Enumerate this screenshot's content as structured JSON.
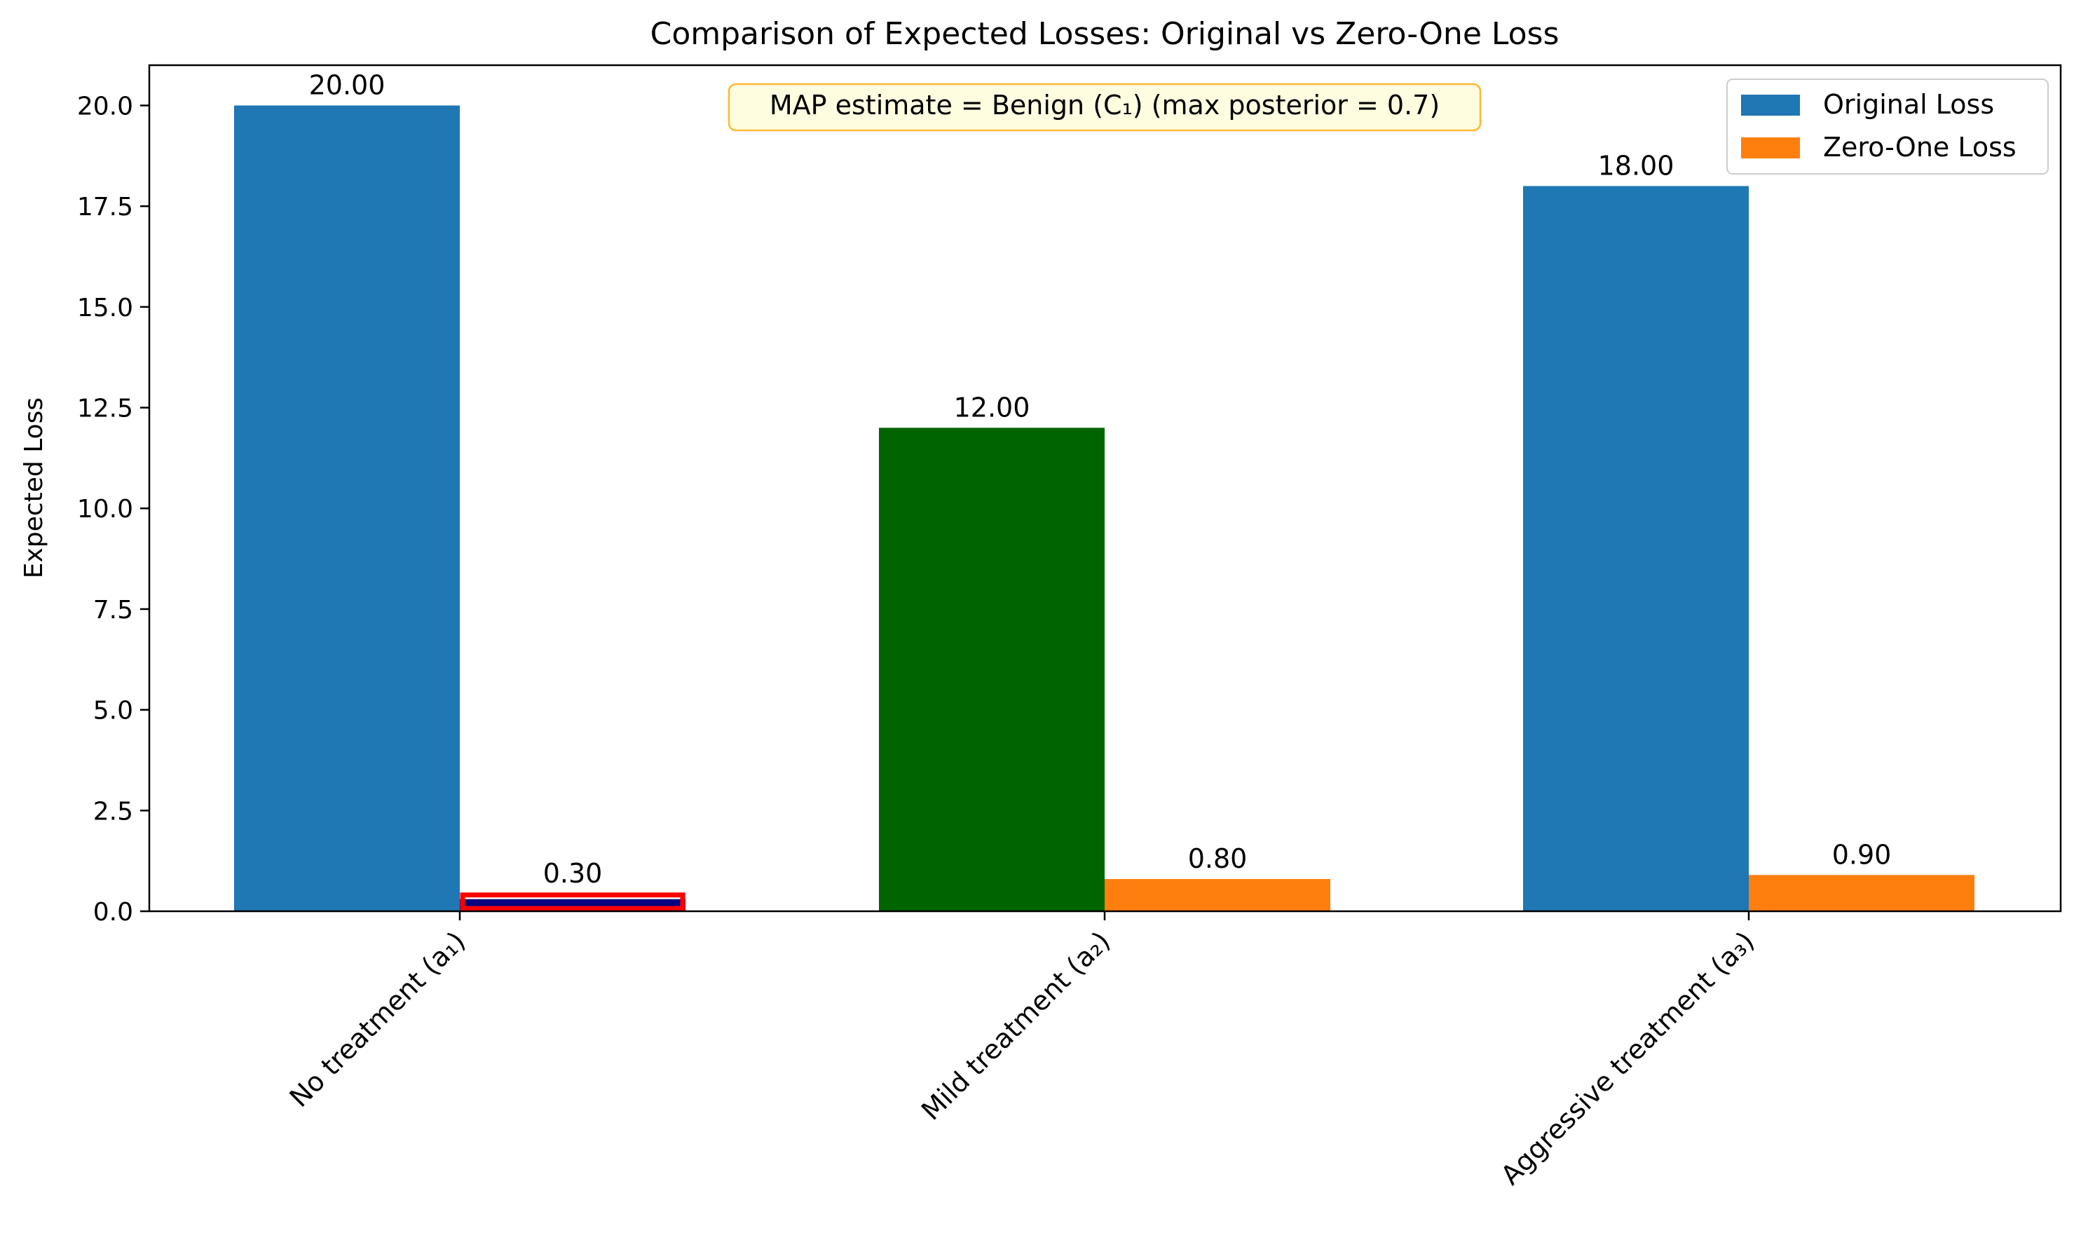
{
  "chart_data": {
    "type": "bar",
    "title": "Comparison of Expected Losses: Original vs Zero-One Loss",
    "xlabel": "",
    "ylabel": "Expected Loss",
    "categories": [
      "No treatment (a₁)",
      "Mild treatment (a₂)",
      "Aggressive treatment (a₃)"
    ],
    "series": [
      {
        "name": "Original Loss",
        "color": "#1f77b4",
        "values": [
          20.0,
          12.0,
          18.0
        ],
        "value_labels": [
          "20.00",
          "12.00",
          "18.00"
        ],
        "bar_colors": [
          "#1f77b4",
          "#006400",
          "#1f77b4"
        ]
      },
      {
        "name": "Zero-One Loss",
        "color": "#ff7f0e",
        "values": [
          0.3,
          0.8,
          0.9
        ],
        "value_labels": [
          "0.30",
          "0.80",
          "0.90"
        ],
        "bar_colors": [
          "#000080",
          "#ff7f0e",
          "#ff7f0e"
        ],
        "highlight_edge_color": "#ff0000",
        "highlighted_index": 0
      }
    ],
    "ylim": [
      0,
      21
    ],
    "yticks": [
      0.0,
      2.5,
      5.0,
      7.5,
      10.0,
      12.5,
      15.0,
      17.5,
      20.0
    ],
    "ytick_labels": [
      "0.0",
      "2.5",
      "5.0",
      "7.5",
      "10.0",
      "12.5",
      "15.0",
      "17.5",
      "20.0"
    ],
    "grid": false,
    "legend_position": "top-right",
    "annotation": {
      "text": "MAP estimate = Benign (C₁) (max posterior = 0.7)",
      "box_fill": "#fffde0",
      "box_edge": "#ffb732"
    }
  }
}
